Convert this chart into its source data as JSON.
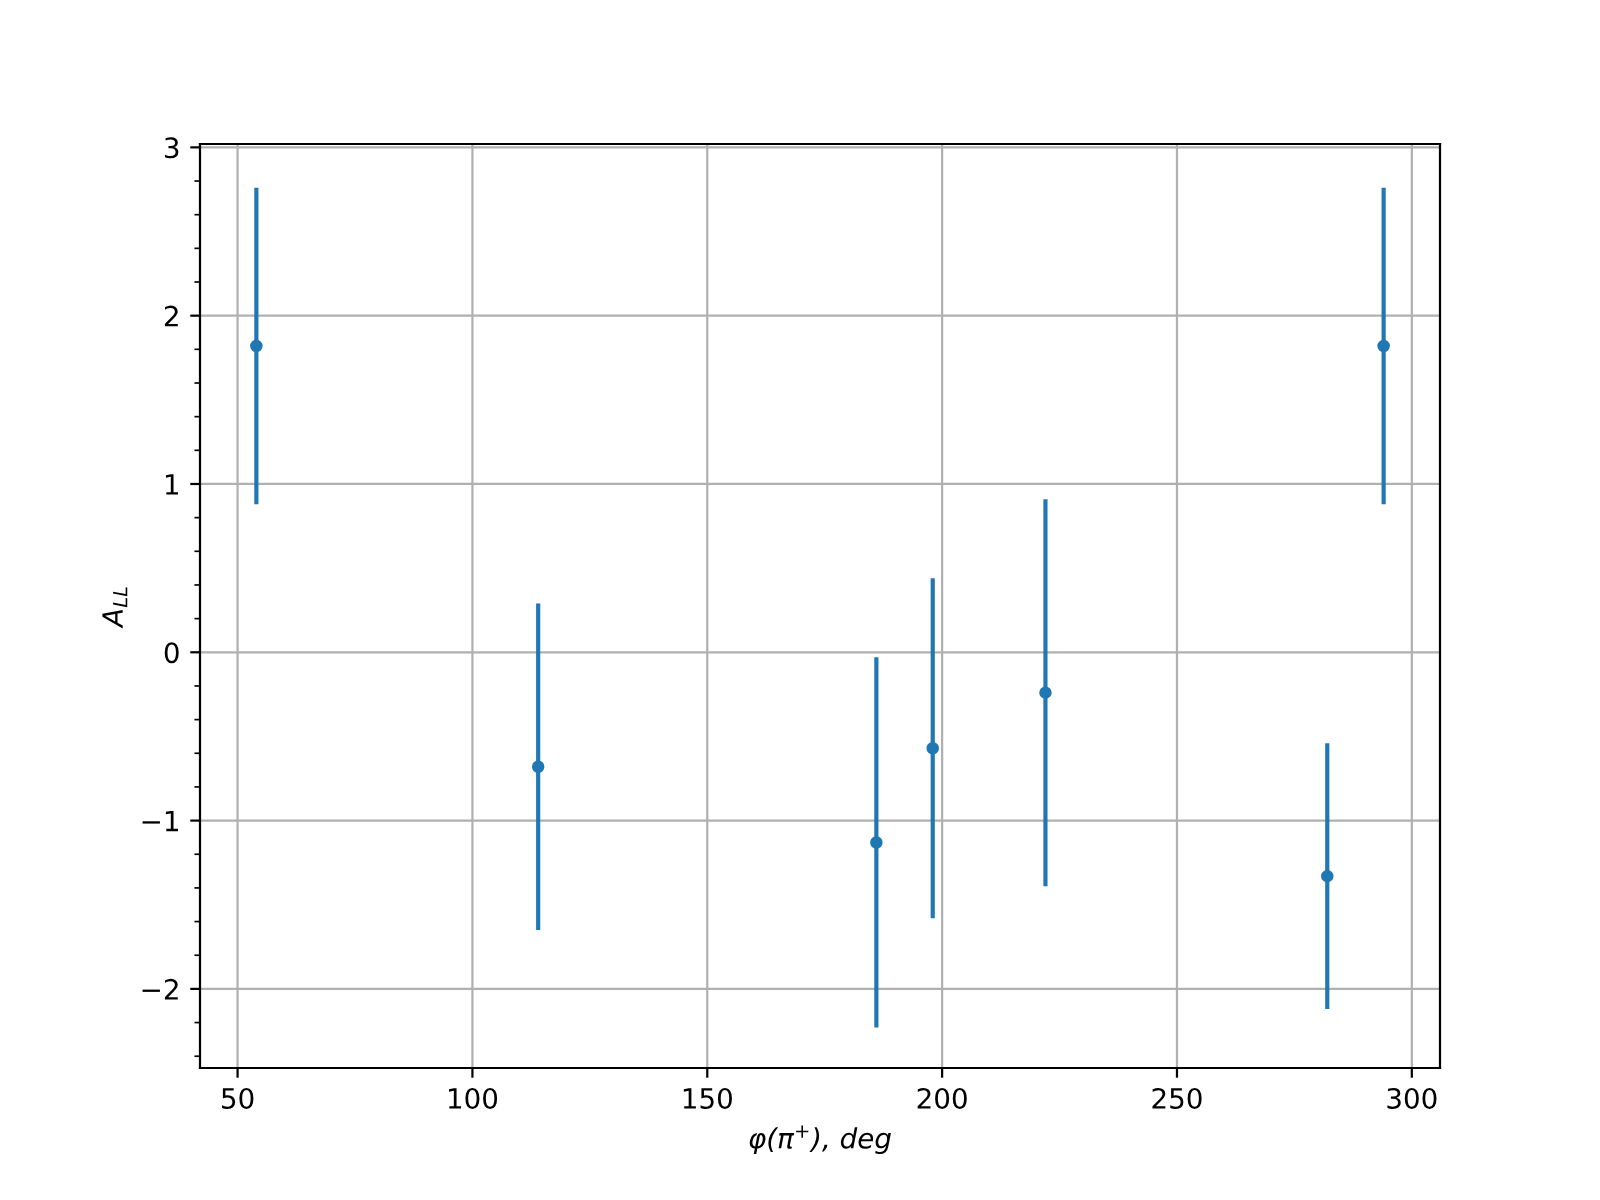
{
  "chart_data": {
    "type": "scatter",
    "xlabel": "φ(π$^{+}$), deg",
    "ylabel": "A$_{LL}$",
    "x": [
      54,
      114,
      186,
      198,
      222,
      282,
      294
    ],
    "values": [
      1.82,
      -0.68,
      -1.13,
      -0.57,
      -0.24,
      -1.33,
      1.82
    ],
    "errors": [
      0.94,
      0.97,
      1.1,
      1.01,
      1.15,
      0.79,
      0.94
    ],
    "color": "#1f77b4",
    "marker": "circle",
    "xlim": [
      42,
      306
    ],
    "ylim": [
      -2.47,
      3.02
    ],
    "xticks": [
      50,
      100,
      150,
      200,
      250,
      300
    ],
    "yticks": [
      {
        "value": -2,
        "label": "−2"
      },
      {
        "value": -1,
        "label": "−1"
      },
      0,
      1,
      2,
      3
    ],
    "grid": true
  }
}
